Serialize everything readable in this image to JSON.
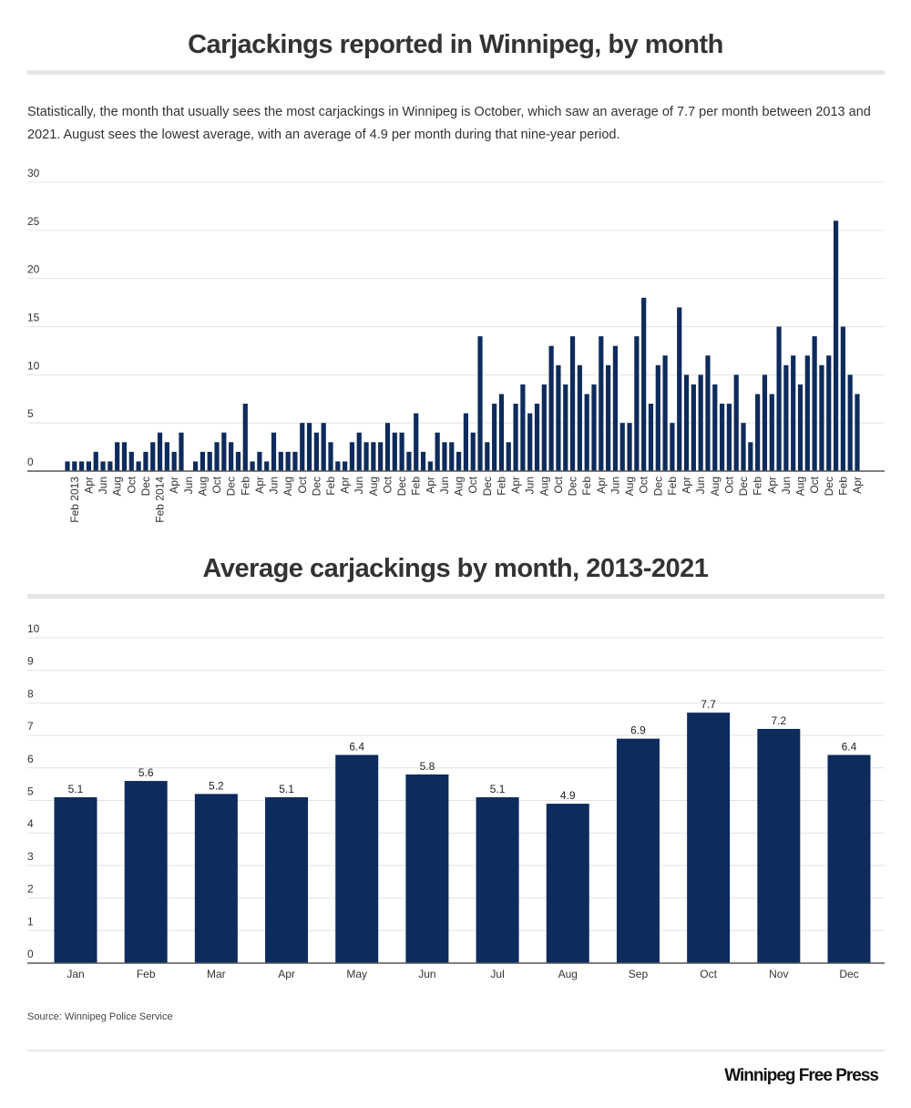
{
  "colors": {
    "bar": "#0d2b5c",
    "grid": "#e3e3e3",
    "axis": "#555555",
    "text": "#333333"
  },
  "description": "Statistically, the month that usually sees the most carjackings in Winnipeg is October, which saw an average of 7.7 per month between 2013 and 2021.  August sees the lowest average, with an average of 4.9 per month during that nine-year period.",
  "source": "Source: Winnipeg Police Service",
  "brand": "Winnipeg Free Press",
  "chart_data": [
    {
      "type": "bar",
      "title": "Carjackings reported in Winnipeg, by month",
      "xlabel": "",
      "ylabel": "",
      "ylim": [
        0,
        30
      ],
      "yticks": [
        0,
        5,
        10,
        15,
        20,
        25,
        30
      ],
      "grid": true,
      "start": "Jan 2013",
      "end": "Apr 2022",
      "tick_labels": [
        "Feb 2013",
        "Apr",
        "Jun",
        "Aug",
        "Oct",
        "Dec",
        "Feb 2014",
        "Apr",
        "Jun",
        "Aug",
        "Oct",
        "Dec",
        "Feb",
        "Apr",
        "Jun",
        "Aug",
        "Oct",
        "Dec",
        "Feb",
        "Apr",
        "Jun",
        "Aug",
        "Oct",
        "Dec",
        "Feb",
        "Apr",
        "Jun",
        "Aug",
        "Oct",
        "Dec",
        "Feb",
        "Apr",
        "Jun",
        "Aug",
        "Oct",
        "Dec",
        "Feb",
        "Apr",
        "Jun",
        "Aug",
        "Oct",
        "Dec",
        "Feb",
        "Apr",
        "Jun",
        "Aug",
        "Oct",
        "Dec",
        "Feb",
        "Apr",
        "Jun",
        "Aug",
        "Oct",
        "Dec",
        "Feb",
        "Apr"
      ],
      "values": [
        1,
        1,
        1,
        1,
        2,
        1,
        1,
        3,
        3,
        2,
        1,
        2,
        3,
        4,
        3,
        2,
        4,
        0,
        1,
        2,
        2,
        3,
        4,
        3,
        2,
        7,
        1,
        2,
        1,
        4,
        2,
        2,
        2,
        5,
        5,
        4,
        5,
        3,
        1,
        1,
        3,
        4,
        3,
        3,
        3,
        5,
        4,
        4,
        2,
        6,
        2,
        1,
        4,
        3,
        3,
        2,
        6,
        4,
        14,
        3,
        7,
        8,
        3,
        7,
        9,
        6,
        7,
        9,
        13,
        11,
        9,
        14,
        11,
        8,
        9,
        14,
        11,
        13,
        5,
        5,
        14,
        18,
        7,
        11,
        12,
        5,
        17,
        10,
        9,
        10,
        12,
        9,
        7,
        7,
        10,
        5,
        3,
        8,
        10,
        8,
        15,
        11,
        12,
        9,
        12,
        14,
        11,
        12,
        26,
        15,
        10,
        8
      ]
    },
    {
      "type": "bar",
      "title": "Average carjackings by month, 2013-2021",
      "xlabel": "",
      "ylabel": "",
      "ylim": [
        0,
        10
      ],
      "yticks": [
        0,
        1,
        2,
        3,
        4,
        5,
        6,
        7,
        8,
        9,
        10
      ],
      "grid": true,
      "categories": [
        "Jan",
        "Feb",
        "Mar",
        "Apr",
        "May",
        "Jun",
        "Jul",
        "Aug",
        "Sep",
        "Oct",
        "Nov",
        "Dec"
      ],
      "values": [
        5.1,
        5.6,
        5.2,
        5.1,
        6.4,
        5.8,
        5.1,
        4.9,
        6.9,
        7.7,
        7.2,
        6.4
      ],
      "data_labels": [
        "5.1",
        "5.6",
        "5.2",
        "5.1",
        "6.4",
        "5.8",
        "5.1",
        "4.9",
        "6.9",
        "7.7",
        "7.2",
        "6.4"
      ]
    }
  ]
}
